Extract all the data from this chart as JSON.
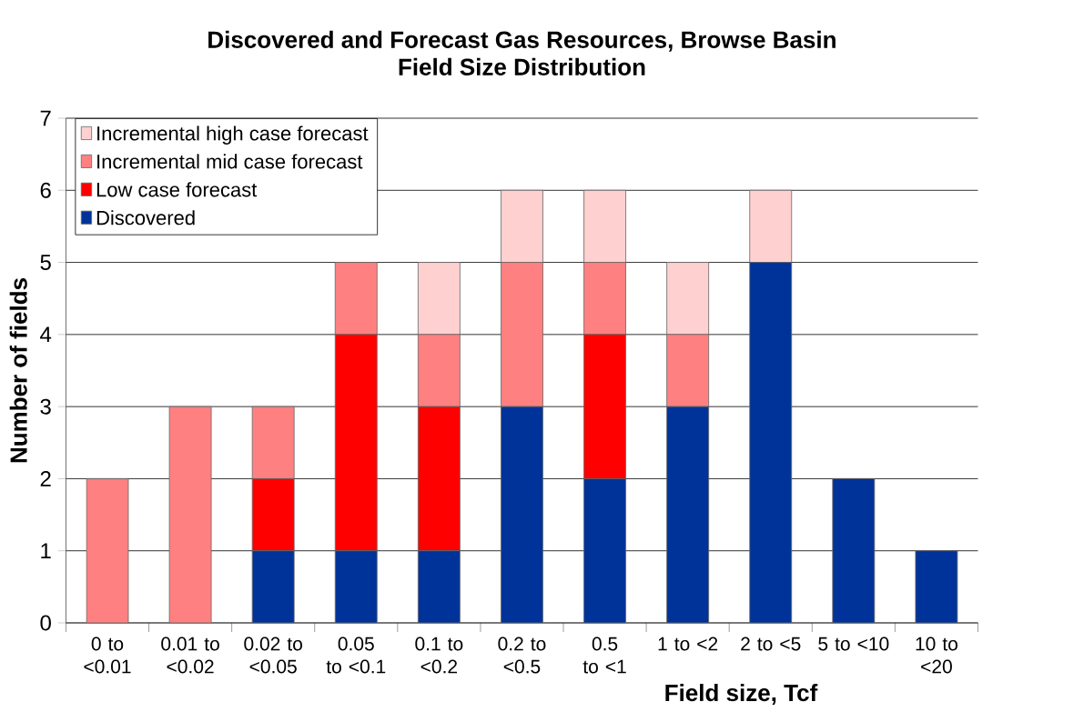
{
  "chart_data": {
    "type": "bar",
    "stacked": true,
    "title": "Discovered and Forecast Gas Resources, Browse Basin",
    "subtitle": "Field Size Distribution",
    "xlabel": "Field size, Tcf",
    "ylabel": "Number of fields",
    "categories": [
      "0 to <0.01",
      "0.01 to <0.02",
      "0.02 to <0.05",
      "0.05 to <0.1",
      "0.1 to <0.2",
      "0.2 to <0.5",
      "0.5 to <1",
      "1 to <2",
      "2 to <5",
      "5 to <10",
      "10 to <20"
    ],
    "series": [
      {
        "name": "Discovered",
        "color": "#003399",
        "values": [
          0,
          0,
          1,
          1,
          1,
          3,
          2,
          3,
          5,
          2,
          1
        ]
      },
      {
        "name": "Low case forecast",
        "color": "#ff0000",
        "values": [
          0,
          0,
          1,
          3,
          2,
          0,
          2,
          0,
          0,
          0,
          0
        ]
      },
      {
        "name": "Incremental mid case forecast",
        "color": "#ff8080",
        "values": [
          2,
          3,
          1,
          1,
          1,
          2,
          1,
          1,
          0,
          0,
          0
        ]
      },
      {
        "name": "Incremental high case forecast",
        "color": "#ffd0d0",
        "values": [
          0,
          0,
          0,
          0,
          1,
          1,
          1,
          1,
          1,
          0,
          0
        ]
      }
    ],
    "ylim": [
      0,
      7
    ],
    "yticks": [
      0,
      1,
      2,
      3,
      4,
      5,
      6,
      7
    ],
    "grid": "y",
    "legend": "top left"
  }
}
